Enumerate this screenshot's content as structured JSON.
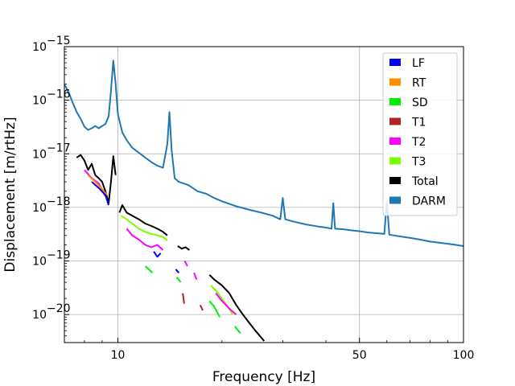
{
  "chart_data": {
    "type": "line",
    "title": "",
    "xlabel": "Frequency [Hz]",
    "ylabel": "Displacement [m/rtHz]",
    "xscale": "log",
    "yscale": "log",
    "xlim": [
      7,
      100
    ],
    "ylim": [
      3e-21,
      1e-15
    ],
    "grid": true,
    "legend_position": "top-right",
    "x_ticks": [
      {
        "value": 10,
        "label": "10"
      },
      {
        "value": 50,
        "label": "50"
      },
      {
        "value": 100,
        "label": "100"
      }
    ],
    "y_ticks": [
      {
        "value": 1e-20,
        "base": "10",
        "exp": "−20"
      },
      {
        "value": 1e-19,
        "base": "10",
        "exp": "−19"
      },
      {
        "value": 1e-18,
        "base": "10",
        "exp": "−18"
      },
      {
        "value": 1e-17,
        "base": "10",
        "exp": "−17"
      },
      {
        "value": 1e-16,
        "base": "10",
        "exp": "−16"
      },
      {
        "value": 1e-15,
        "base": "10",
        "exp": "−15"
      }
    ],
    "series": [
      {
        "name": "DARM",
        "color": "#1f77b4",
        "width": 2,
        "segments": [
          [
            [
              7.0,
              2e-16
            ],
            [
              7.2,
              1.4e-16
            ],
            [
              7.4,
              9e-17
            ],
            [
              7.6,
              6e-17
            ],
            [
              7.8,
              4.5e-17
            ],
            [
              8.0,
              3.2e-17
            ],
            [
              8.2,
              2.8e-17
            ],
            [
              8.4,
              3e-17
            ],
            [
              8.6,
              3.3e-17
            ],
            [
              8.8,
              3e-17
            ],
            [
              9.0,
              3.3e-17
            ],
            [
              9.2,
              3.6e-17
            ],
            [
              9.4,
              5e-17
            ],
            [
              9.55,
              1.5e-16
            ],
            [
              9.7,
              5.5e-16
            ],
            [
              9.85,
              2e-16
            ],
            [
              10.0,
              5.5e-17
            ],
            [
              10.3,
              2.5e-17
            ],
            [
              10.6,
              1.8e-17
            ],
            [
              11.0,
              1.3e-17
            ],
            [
              11.5,
              1.05e-17
            ],
            [
              12.0,
              8.5e-18
            ],
            [
              12.5,
              7e-18
            ],
            [
              13.0,
              6e-18
            ],
            [
              13.5,
              5.5e-18
            ],
            [
              13.9,
              1.5e-17
            ],
            [
              14.1,
              6e-17
            ],
            [
              14.3,
              1.2e-17
            ],
            [
              14.6,
              3.5e-18
            ],
            [
              15.0,
              3e-18
            ],
            [
              16.0,
              2.6e-18
            ],
            [
              17.0,
              2e-18
            ],
            [
              18.0,
              1.8e-18
            ],
            [
              19.0,
              1.5e-18
            ],
            [
              20.0,
              1.3e-18
            ],
            [
              22.0,
              1.05e-18
            ],
            [
              24.0,
              9e-19
            ],
            [
              26.0,
              8e-19
            ],
            [
              28.0,
              7e-19
            ],
            [
              29.5,
              6e-19
            ],
            [
              30.0,
              1.5e-18
            ],
            [
              30.5,
              6e-19
            ],
            [
              32.0,
              5.5e-19
            ],
            [
              35.0,
              4.8e-19
            ],
            [
              38.0,
              4.4e-19
            ],
            [
              40.0,
              4.2e-19
            ],
            [
              41.5,
              4e-19
            ],
            [
              42.0,
              1.2e-18
            ],
            [
              42.5,
              4e-19
            ],
            [
              45.0,
              3.9e-19
            ],
            [
              48.0,
              3.7e-19
            ],
            [
              50.0,
              3.6e-19
            ],
            [
              53.0,
              3.4e-19
            ],
            [
              56.0,
              3.3e-19
            ],
            [
              59.0,
              3.2e-19
            ],
            [
              60.0,
              1.3e-18
            ],
            [
              61.0,
              3.1e-19
            ],
            [
              65.0,
              2.9e-19
            ],
            [
              70.0,
              2.7e-19
            ],
            [
              75.0,
              2.5e-19
            ],
            [
              80.0,
              2.3e-19
            ],
            [
              85.0,
              2.2e-19
            ],
            [
              90.0,
              2.1e-19
            ],
            [
              95.0,
              2e-19
            ],
            [
              100.0,
              1.9e-19
            ]
          ]
        ]
      },
      {
        "name": "Total",
        "color": "#000000",
        "width": 2,
        "segments": [
          [
            [
              7.6,
              8.5e-18
            ],
            [
              7.8,
              9.5e-18
            ],
            [
              8.0,
              7.5e-18
            ],
            [
              8.2,
              5e-18
            ],
            [
              8.4,
              6.5e-18
            ],
            [
              8.6,
              4e-18
            ],
            [
              8.8,
              3.5e-18
            ],
            [
              9.0,
              3e-18
            ],
            [
              9.2,
              2e-18
            ],
            [
              9.4,
              1.2e-18
            ],
            [
              9.55,
              3e-18
            ],
            [
              9.7,
              9e-18
            ],
            [
              9.85,
              4e-18
            ]
          ],
          [
            [
              10.1,
              8e-19
            ],
            [
              10.3,
              1.1e-18
            ],
            [
              10.6,
              8e-19
            ],
            [
              11.0,
              7e-19
            ],
            [
              11.5,
              6e-19
            ],
            [
              12.0,
              5e-19
            ],
            [
              12.5,
              4.5e-19
            ],
            [
              13.0,
              4e-19
            ],
            [
              13.5,
              3.5e-19
            ],
            [
              13.9,
              3e-19
            ]
          ],
          [
            [
              14.9,
              1.9e-19
            ],
            [
              15.3,
              1.7e-19
            ],
            [
              15.7,
              1.8e-19
            ],
            [
              16.1,
              1.6e-19
            ]
          ],
          [
            [
              18.4,
              5.5e-20
            ],
            [
              19.0,
              4.5e-20
            ],
            [
              20.0,
              3.5e-20
            ],
            [
              21.0,
              2.5e-20
            ],
            [
              22.0,
              1.5e-20
            ],
            [
              23.0,
              1e-20
            ],
            [
              24.0,
              7e-21
            ],
            [
              25.0,
              5e-21
            ],
            [
              26.5,
              3.2e-21
            ]
          ]
        ]
      },
      {
        "name": "T3",
        "color": "#7cfc00",
        "width": 2,
        "segments": [
          [
            [
              10.2,
              7e-19
            ],
            [
              10.6,
              6e-19
            ],
            [
              11.0,
              5e-19
            ],
            [
              11.5,
              4e-19
            ],
            [
              12.0,
              3.5e-19
            ],
            [
              12.5,
              3.2e-19
            ],
            [
              13.0,
              3e-19
            ],
            [
              13.5,
              2.8e-19
            ],
            [
              13.9,
              2.4e-19
            ]
          ],
          [
            [
              18.6,
              3.5e-20
            ],
            [
              19.5,
              2.5e-20
            ],
            [
              20.5,
              1.6e-20
            ],
            [
              21.5,
              1e-20
            ]
          ]
        ]
      },
      {
        "name": "T2",
        "color": "#ff00ff",
        "width": 2,
        "segments": [
          [
            [
              8.0,
              5e-18
            ],
            [
              8.4,
              3.5e-18
            ],
            [
              8.8,
              2.8e-18
            ],
            [
              9.2,
              1.6e-18
            ]
          ],
          [
            [
              10.6,
              4e-19
            ],
            [
              11.0,
              3e-19
            ],
            [
              11.5,
              2.5e-19
            ],
            [
              12.0,
              2e-19
            ],
            [
              12.5,
              1.8e-19
            ],
            [
              13.0,
              2e-19
            ],
            [
              13.5,
              1.6e-19
            ]
          ],
          [
            [
              15.6,
              1e-19
            ],
            [
              15.9,
              8e-20
            ]
          ],
          [
            [
              16.6,
              6e-20
            ],
            [
              16.9,
              4.5e-20
            ]
          ],
          [
            [
              19.2,
              2.5e-20
            ],
            [
              20.0,
              1.8e-20
            ],
            [
              21.0,
              1.3e-20
            ],
            [
              22.0,
              1e-20
            ]
          ]
        ]
      },
      {
        "name": "SD",
        "color": "#00ee00",
        "width": 2,
        "segments": [
          [
            [
              12.0,
              8e-20
            ],
            [
              12.6,
              6e-20
            ]
          ],
          [
            [
              14.8,
              5e-20
            ],
            [
              15.2,
              4e-20
            ]
          ],
          [
            [
              18.4,
              1.8e-20
            ],
            [
              19.0,
              1.4e-20
            ],
            [
              19.7,
              9e-21
            ]
          ],
          [
            [
              21.8,
              6e-21
            ],
            [
              22.6,
              4.5e-21
            ]
          ]
        ]
      },
      {
        "name": "RT",
        "color": "#ff8c00",
        "width": 2,
        "segments": [
          [
            [
              8.2,
              4e-18
            ],
            [
              8.6,
              3e-18
            ],
            [
              9.0,
              2.2e-18
            ],
            [
              9.3,
              1.7e-18
            ]
          ]
        ]
      },
      {
        "name": "LF",
        "color": "#0000ee",
        "width": 2,
        "segments": [
          [
            [
              8.4,
              3e-18
            ],
            [
              8.8,
              2.3e-18
            ],
            [
              9.2,
              1.7e-18
            ],
            [
              9.4,
              1.1e-18
            ]
          ],
          [
            [
              12.7,
              1.5e-19
            ],
            [
              13.0,
              1.2e-19
            ],
            [
              13.3,
              1.4e-19
            ]
          ],
          [
            [
              14.7,
              7e-20
            ],
            [
              15.0,
              6e-20
            ]
          ]
        ]
      },
      {
        "name": "T1",
        "color": "#b22222",
        "width": 2,
        "segments": [
          [
            [
              15.4,
              2.5e-20
            ],
            [
              15.55,
              1.6e-20
            ]
          ],
          [
            [
              17.3,
              1.5e-20
            ],
            [
              17.6,
              1.2e-20
            ]
          ]
        ]
      }
    ],
    "legend": [
      {
        "label": "LF",
        "color": "#0000ee"
      },
      {
        "label": "RT",
        "color": "#ff8c00"
      },
      {
        "label": "SD",
        "color": "#00ee00"
      },
      {
        "label": "T1",
        "color": "#b22222"
      },
      {
        "label": "T2",
        "color": "#ff00ff"
      },
      {
        "label": "T3",
        "color": "#7cfc00"
      },
      {
        "label": "Total",
        "color": "#000000"
      },
      {
        "label": "DARM",
        "color": "#1f77b4"
      }
    ]
  }
}
